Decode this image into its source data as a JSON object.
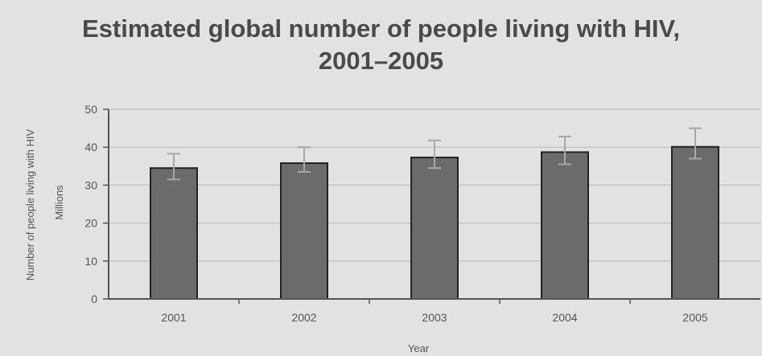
{
  "page": {
    "title_line1": "Estimated global number of people living with HIV,",
    "title_line2": "2001–2005"
  },
  "colors": {
    "background": "#e2e2e2",
    "bar_fill": "#6b6b6b",
    "bar_stroke": "#222222",
    "error_bar": "#a8a8a8",
    "gridline": "#c6c6c6",
    "axis": "#555555"
  },
  "chart_data": {
    "type": "bar",
    "title": "Estimated global number of people living with HIV, 2001–2005",
    "xlabel": "Year",
    "ylabel": "Number of people living with HIV",
    "ylabel_unit": "Millions",
    "categories": [
      "2001",
      "2002",
      "2003",
      "2004",
      "2005"
    ],
    "values": [
      34.5,
      35.8,
      37.3,
      38.7,
      40.1
    ],
    "error_low": [
      31.5,
      33.5,
      34.5,
      35.5,
      37.0
    ],
    "error_high": [
      38.3,
      40.0,
      41.8,
      42.8,
      45.0
    ],
    "ylim": [
      0,
      50
    ],
    "yticks": [
      0,
      10,
      20,
      30,
      40,
      50
    ],
    "grid": true
  }
}
